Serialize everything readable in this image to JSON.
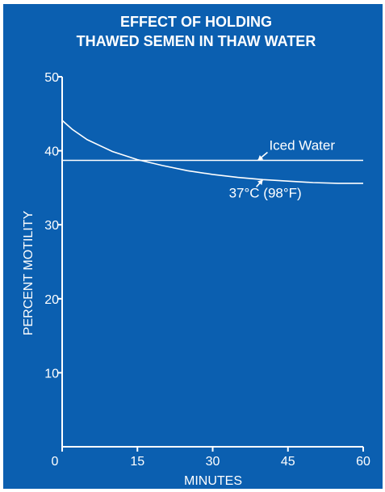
{
  "colors": {
    "panel": "#0b5fb0",
    "ink": "#ffffff",
    "border": "#ffffff"
  },
  "chart_data": {
    "type": "line",
    "title_line1": "EFFECT OF HOLDING",
    "title_line2": "THAWED SEMEN IN THAW WATER",
    "xlabel": "MINUTES",
    "ylabel": "PERCENT MOTILITY",
    "xlim": [
      0,
      60
    ],
    "ylim": [
      0,
      50
    ],
    "xticks": [
      0,
      15,
      30,
      45,
      60
    ],
    "yticks": [
      10,
      20,
      30,
      40,
      50
    ],
    "grid": false,
    "series": [
      {
        "name": "Iced Water",
        "x": [
          0,
          60
        ],
        "y": [
          38.7,
          38.7
        ]
      },
      {
        "name": "37°C (98°F)",
        "x": [
          0,
          2,
          5,
          10,
          15,
          20,
          25,
          30,
          35,
          40,
          45,
          50,
          55,
          60
        ],
        "y": [
          44.1,
          42.9,
          41.5,
          39.9,
          38.8,
          38.0,
          37.3,
          36.8,
          36.4,
          36.1,
          35.9,
          35.7,
          35.6,
          35.6
        ]
      }
    ],
    "annotations": [
      {
        "label": "Iced Water",
        "series": 0,
        "arrow_to_x": 39
      },
      {
        "label": "37°C (98°F)",
        "series": 1,
        "arrow_to_x": 40
      }
    ]
  }
}
